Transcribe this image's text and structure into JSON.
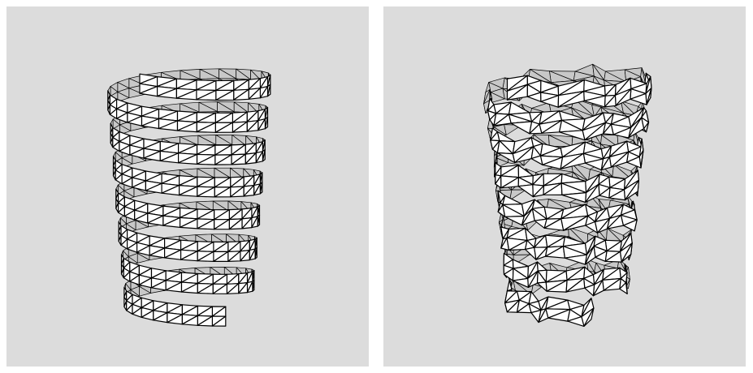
{
  "figure": {
    "panels": [
      {
        "id": "left",
        "subject": "helical-spring-mesh",
        "style": "regular-triangulated"
      },
      {
        "id": "right",
        "subject": "helical-spring-mesh",
        "style": "deformed-triangulated"
      }
    ],
    "colors": {
      "background": "#dcdcdc",
      "surface": "#ffffff",
      "inner-surface": "#c8c8c8",
      "edge": "#000000"
    }
  }
}
